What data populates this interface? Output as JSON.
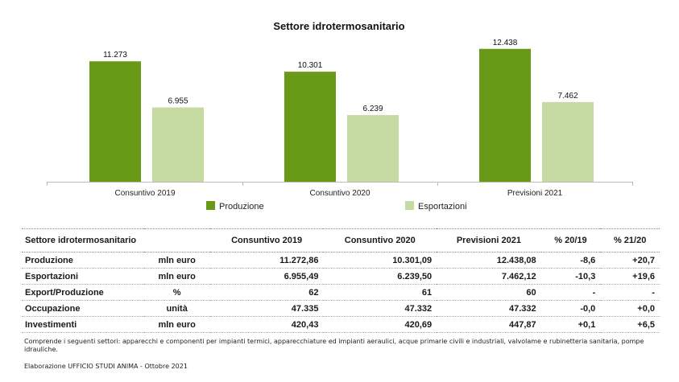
{
  "chart_data": {
    "type": "bar",
    "title": "Settore idrotermosanitario",
    "categories": [
      "Consuntivo 2019",
      "Consuntivo 2020",
      "Previsioni  2021"
    ],
    "series": [
      {
        "name": "Produzione",
        "color": "#689a17",
        "values": [
          11273,
          10301,
          12438
        ],
        "labels": [
          "11.273",
          "10.301",
          "12.438"
        ]
      },
      {
        "name": "Esportazioni",
        "color": "#c5dba1",
        "values": [
          6955,
          6239,
          7462
        ],
        "labels": [
          "6.955",
          "6.239",
          "7.462"
        ]
      }
    ],
    "ylim": [
      0,
      14000
    ],
    "grid": false,
    "legend": "bottom"
  },
  "table": {
    "headers": [
      "Settore idrotermosanitario",
      "Consuntivo 2019",
      "Consuntivo 2020",
      "Previsioni  2021",
      "% 20/19",
      "% 21/20"
    ],
    "rows": [
      {
        "label": "Produzione",
        "unit": "mln euro",
        "c2019": "11.272,86",
        "c2020": "10.301,09",
        "p2021": "12.438,08",
        "p2019_20": "-8,6",
        "p2021_20": "+20,7"
      },
      {
        "label": "Esportazioni",
        "unit": "mln euro",
        "c2019": "6.955,49",
        "c2020": "6.239,50",
        "p2021": "7.462,12",
        "p2019_20": "-10,3",
        "p2021_20": "+19,6"
      },
      {
        "label": "Export/Produzione",
        "unit": "%",
        "c2019": "62",
        "c2020": "61",
        "p2021": "60",
        "p2019_20": "-",
        "p2021_20": "-"
      },
      {
        "label": "Occupazione",
        "unit": "unità",
        "c2019": "47.335",
        "c2020": "47.332",
        "p2021": "47.332",
        "p2019_20": "-0,0",
        "p2021_20": "+0,0"
      },
      {
        "label": "Investimenti",
        "unit": "mln euro",
        "c2019": "420,43",
        "c2020": "420,69",
        "p2021": "447,87",
        "p2019_20": "+0,1",
        "p2021_20": "+6,5"
      }
    ]
  },
  "notes": {
    "sectors": "Comprende i seguenti settori: apparecchi e componenti per impianti termici, apparecchiature ed impianti aeraulici, acque primarie civili e industriali, valvolame e rubinetteria sanitaria, pompe idrauliche.",
    "source": "Elaborazione UFFICIO STUDI ANIMA - Ottobre 2021"
  }
}
